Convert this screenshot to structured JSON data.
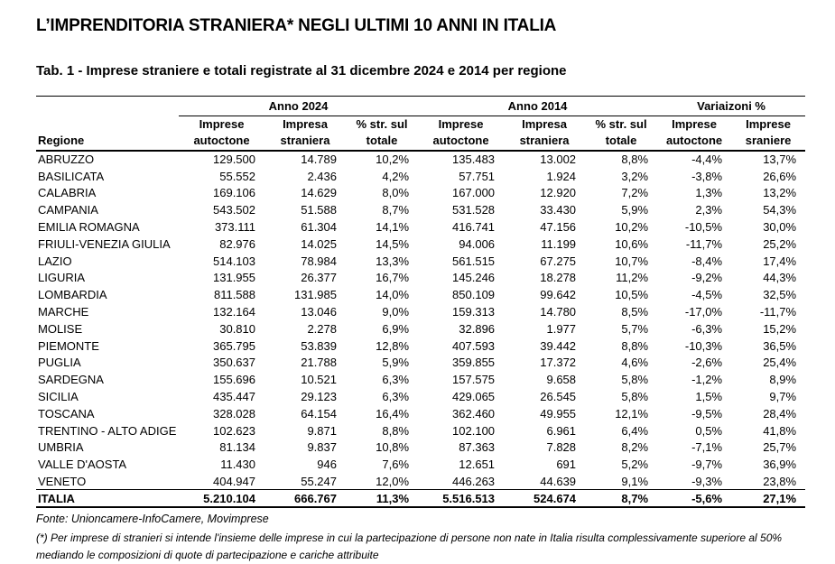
{
  "page": {
    "title": "L’IMPRENDITORIA STRANIERA* NEGLI ULTIMI 10 ANNI IN ITALIA",
    "subtitle": "Tab. 1 - Imprese straniere e totali registrate al 31 dicembre 2024 e 2014 per regione"
  },
  "table": {
    "group_headers": {
      "anno2024": "Anno 2024",
      "anno2014": "Anno 2014",
      "variazioni": "Variaizoni %"
    },
    "column_headers": [
      "Regione",
      "Imprese\nautoctone",
      "Impresa\nstraniera",
      "% str. sul\ntotale",
      "Imprese\nautoctone",
      "Impresa\nstraniera",
      "% str. sul\ntotale",
      "Imprese\nautoctone",
      "Imprese\nsraniere"
    ],
    "rows": [
      [
        "ABRUZZO",
        "129.500",
        "14.789",
        "10,2%",
        "135.483",
        "13.002",
        "8,8%",
        "-4,4%",
        "13,7%"
      ],
      [
        "BASILICATA",
        "55.552",
        "2.436",
        "4,2%",
        "57.751",
        "1.924",
        "3,2%",
        "-3,8%",
        "26,6%"
      ],
      [
        "CALABRIA",
        "169.106",
        "14.629",
        "8,0%",
        "167.000",
        "12.920",
        "7,2%",
        "1,3%",
        "13,2%"
      ],
      [
        "CAMPANIA",
        "543.502",
        "51.588",
        "8,7%",
        "531.528",
        "33.430",
        "5,9%",
        "2,3%",
        "54,3%"
      ],
      [
        "EMILIA ROMAGNA",
        "373.111",
        "61.304",
        "14,1%",
        "416.741",
        "47.156",
        "10,2%",
        "-10,5%",
        "30,0%"
      ],
      [
        "FRIULI-VENEZIA GIULIA",
        "82.976",
        "14.025",
        "14,5%",
        "94.006",
        "11.199",
        "10,6%",
        "-11,7%",
        "25,2%"
      ],
      [
        "LAZIO",
        "514.103",
        "78.984",
        "13,3%",
        "561.515",
        "67.275",
        "10,7%",
        "-8,4%",
        "17,4%"
      ],
      [
        "LIGURIA",
        "131.955",
        "26.377",
        "16,7%",
        "145.246",
        "18.278",
        "11,2%",
        "-9,2%",
        "44,3%"
      ],
      [
        "LOMBARDIA",
        "811.588",
        "131.985",
        "14,0%",
        "850.109",
        "99.642",
        "10,5%",
        "-4,5%",
        "32,5%"
      ],
      [
        "MARCHE",
        "132.164",
        "13.046",
        "9,0%",
        "159.313",
        "14.780",
        "8,5%",
        "-17,0%",
        "-11,7%"
      ],
      [
        "MOLISE",
        "30.810",
        "2.278",
        "6,9%",
        "32.896",
        "1.977",
        "5,7%",
        "-6,3%",
        "15,2%"
      ],
      [
        "PIEMONTE",
        "365.795",
        "53.839",
        "12,8%",
        "407.593",
        "39.442",
        "8,8%",
        "-10,3%",
        "36,5%"
      ],
      [
        "PUGLIA",
        "350.637",
        "21.788",
        "5,9%",
        "359.855",
        "17.372",
        "4,6%",
        "-2,6%",
        "25,4%"
      ],
      [
        "SARDEGNA",
        "155.696",
        "10.521",
        "6,3%",
        "157.575",
        "9.658",
        "5,8%",
        "-1,2%",
        "8,9%"
      ],
      [
        "SICILIA",
        "435.447",
        "29.123",
        "6,3%",
        "429.065",
        "26.545",
        "5,8%",
        "1,5%",
        "9,7%"
      ],
      [
        "TOSCANA",
        "328.028",
        "64.154",
        "16,4%",
        "362.460",
        "49.955",
        "12,1%",
        "-9,5%",
        "28,4%"
      ],
      [
        "TRENTINO - ALTO ADIGE",
        "102.623",
        "9.871",
        "8,8%",
        "102.100",
        "6.961",
        "6,4%",
        "0,5%",
        "41,8%"
      ],
      [
        "UMBRIA",
        "81.134",
        "9.837",
        "10,8%",
        "87.363",
        "7.828",
        "8,2%",
        "-7,1%",
        "25,7%"
      ],
      [
        "VALLE D'AOSTA",
        "11.430",
        "946",
        "7,6%",
        "12.651",
        "691",
        "5,2%",
        "-9,7%",
        "36,9%"
      ],
      [
        "VENETO",
        "404.947",
        "55.247",
        "12,0%",
        "446.263",
        "44.639",
        "9,1%",
        "-9,3%",
        "23,8%"
      ]
    ],
    "total_row": [
      "ITALIA",
      "5.210.104",
      "666.767",
      "11,3%",
      "5.516.513",
      "524.674",
      "8,7%",
      "-5,6%",
      "27,1%"
    ]
  },
  "footer": {
    "source": "Fonte: Unioncamere-InfoCamere, Movimprese",
    "note": "(*) Per imprese di stranieri si intende l'insieme delle imprese in cui la partecipazione di persone non nate in Italia risulta complessivamente superiore al 50% mediando le composizioni di quote di partecipazione e cariche attribuite"
  },
  "colors": {
    "text": "#000000",
    "background": "#ffffff",
    "rule": "#000000"
  }
}
